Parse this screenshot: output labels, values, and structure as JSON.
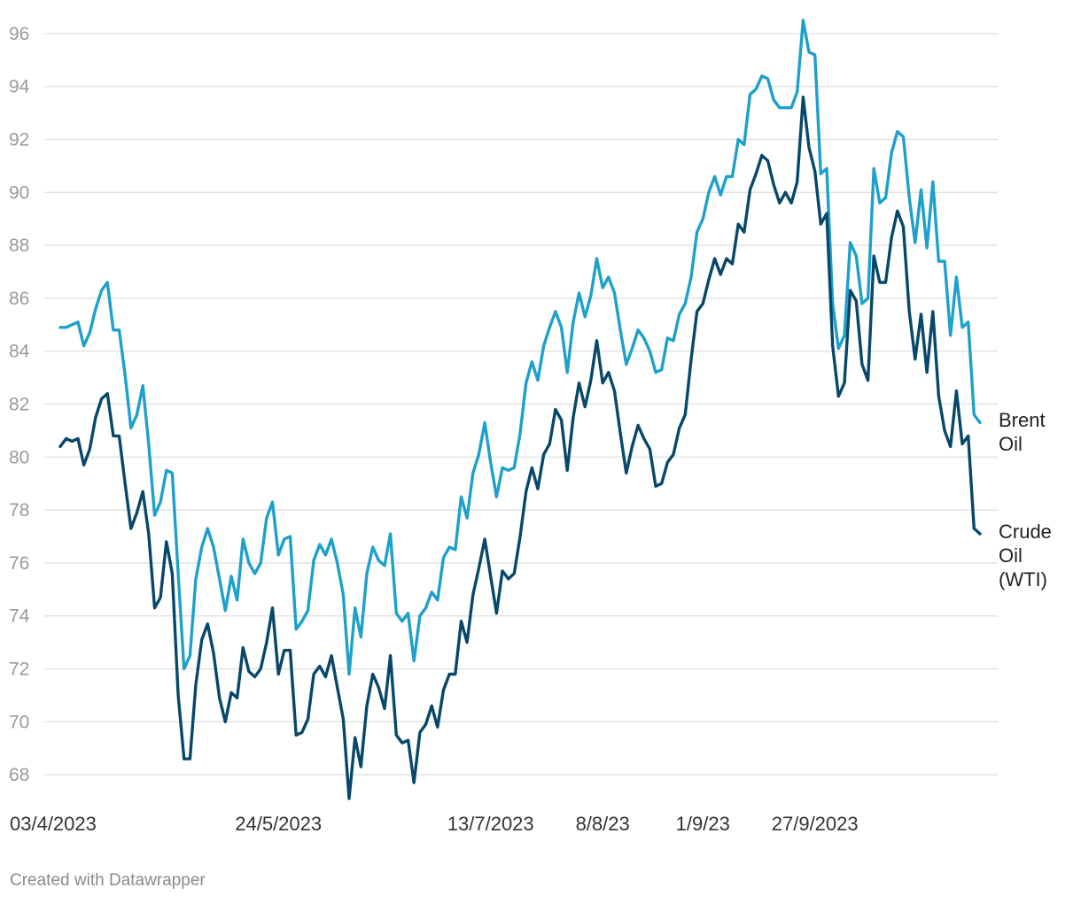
{
  "footer_text": "Created with Datawrapper",
  "chart_data": {
    "type": "line",
    "ylim": [
      67,
      96.6
    ],
    "y_ticks": [
      68,
      70,
      72,
      74,
      76,
      78,
      80,
      82,
      84,
      86,
      88,
      90,
      92,
      94,
      96
    ],
    "x_tick_labels": [
      {
        "label": "03/4/2023",
        "index": 0
      },
      {
        "label": "24/5/2023",
        "index": 37
      },
      {
        "label": "13/7/2023",
        "index": 73
      },
      {
        "label": "8/8/23",
        "index": 92
      },
      {
        "label": "1/9/23",
        "index": 109
      },
      {
        "label": "27/9/2023",
        "index": 128
      }
    ],
    "grid": true,
    "legend": "direct labels at line ends",
    "series": [
      {
        "name": "Brent Oil",
        "label_lines": [
          "Brent",
          "Oil"
        ],
        "color": "#1ea0cc",
        "values": [
          84.9,
          84.9,
          85.0,
          85.1,
          84.2,
          84.7,
          85.6,
          86.3,
          86.6,
          84.8,
          84.8,
          83.1,
          81.1,
          81.6,
          82.7,
          80.5,
          77.8,
          78.3,
          79.5,
          79.4,
          75.6,
          72.0,
          72.5,
          75.4,
          76.6,
          77.3,
          76.6,
          75.4,
          74.2,
          75.5,
          74.6,
          76.9,
          76.0,
          75.6,
          76.0,
          77.7,
          78.3,
          76.3,
          76.9,
          77.0,
          73.5,
          73.8,
          74.2,
          76.1,
          76.7,
          76.3,
          76.9,
          76.0,
          74.8,
          71.8,
          74.3,
          73.2,
          75.6,
          76.6,
          76.1,
          75.9,
          77.1,
          74.1,
          73.8,
          74.1,
          72.3,
          74.0,
          74.3,
          74.9,
          74.6,
          76.2,
          76.6,
          76.5,
          78.5,
          77.7,
          79.4,
          80.1,
          81.3,
          79.8,
          78.5,
          79.6,
          79.5,
          79.6,
          80.9,
          82.8,
          83.6,
          82.9,
          84.2,
          84.9,
          85.5,
          84.9,
          83.2,
          85.1,
          86.2,
          85.3,
          86.1,
          87.5,
          86.4,
          86.8,
          86.2,
          84.8,
          83.5,
          84.1,
          84.8,
          84.5,
          84.0,
          83.2,
          83.3,
          84.5,
          84.4,
          85.4,
          85.8,
          86.8,
          88.5,
          89.0,
          90.0,
          90.6,
          89.9,
          90.6,
          90.6,
          92.0,
          91.8,
          93.7,
          93.9,
          94.4,
          94.3,
          93.5,
          93.2,
          93.2,
          93.2,
          93.8,
          96.5,
          95.3,
          95.2,
          90.7,
          90.9,
          85.8,
          84.1,
          84.6,
          88.1,
          87.6,
          85.8,
          86.0,
          90.9,
          89.6,
          89.8,
          91.5,
          92.3,
          92.1,
          89.8,
          88.1,
          90.1,
          87.9,
          90.4,
          87.4,
          87.4,
          84.6,
          86.8,
          84.9,
          85.1,
          81.6,
          81.3
        ]
      },
      {
        "name": "Crude Oil (WTI)",
        "label_lines": [
          "Crude",
          "Oil",
          "(WTI)"
        ],
        "color": "#07486a",
        "values": [
          80.4,
          80.7,
          80.6,
          80.7,
          79.7,
          80.3,
          81.5,
          82.2,
          82.4,
          80.8,
          80.8,
          79.0,
          77.3,
          77.9,
          78.7,
          77.1,
          74.3,
          74.7,
          76.8,
          75.6,
          71.0,
          68.6,
          68.6,
          71.4,
          73.1,
          73.7,
          72.6,
          70.9,
          70.0,
          71.1,
          70.9,
          72.8,
          71.9,
          71.7,
          72.0,
          73.0,
          74.3,
          71.8,
          72.7,
          72.7,
          69.5,
          69.6,
          70.1,
          71.8,
          72.1,
          71.7,
          72.5,
          71.3,
          70.1,
          67.1,
          69.4,
          68.3,
          70.6,
          71.8,
          71.3,
          70.5,
          72.5,
          69.5,
          69.2,
          69.3,
          67.7,
          69.6,
          69.9,
          70.6,
          69.8,
          71.2,
          71.8,
          71.8,
          73.8,
          73.0,
          74.8,
          75.8,
          76.9,
          75.5,
          74.1,
          75.7,
          75.4,
          75.6,
          77.0,
          78.7,
          79.6,
          78.8,
          80.1,
          80.5,
          81.8,
          81.4,
          79.5,
          81.5,
          82.8,
          81.9,
          82.9,
          84.4,
          82.8,
          83.2,
          82.5,
          80.9,
          79.4,
          80.4,
          81.2,
          80.7,
          80.3,
          78.9,
          79.0,
          79.8,
          80.1,
          81.1,
          81.6,
          83.7,
          85.5,
          85.8,
          86.7,
          87.5,
          86.9,
          87.5,
          87.3,
          88.8,
          88.5,
          90.1,
          90.7,
          91.4,
          91.2,
          90.3,
          89.6,
          90.0,
          89.6,
          90.4,
          93.6,
          91.7,
          90.8,
          88.8,
          89.2,
          84.2,
          82.3,
          82.8,
          86.3,
          85.9,
          83.5,
          82.9,
          87.6,
          86.6,
          86.6,
          88.3,
          89.3,
          88.7,
          85.5,
          83.7,
          85.4,
          83.2,
          85.5,
          82.3,
          81.0,
          80.4,
          82.5,
          80.5,
          80.8,
          77.3,
          77.1
        ]
      }
    ]
  }
}
